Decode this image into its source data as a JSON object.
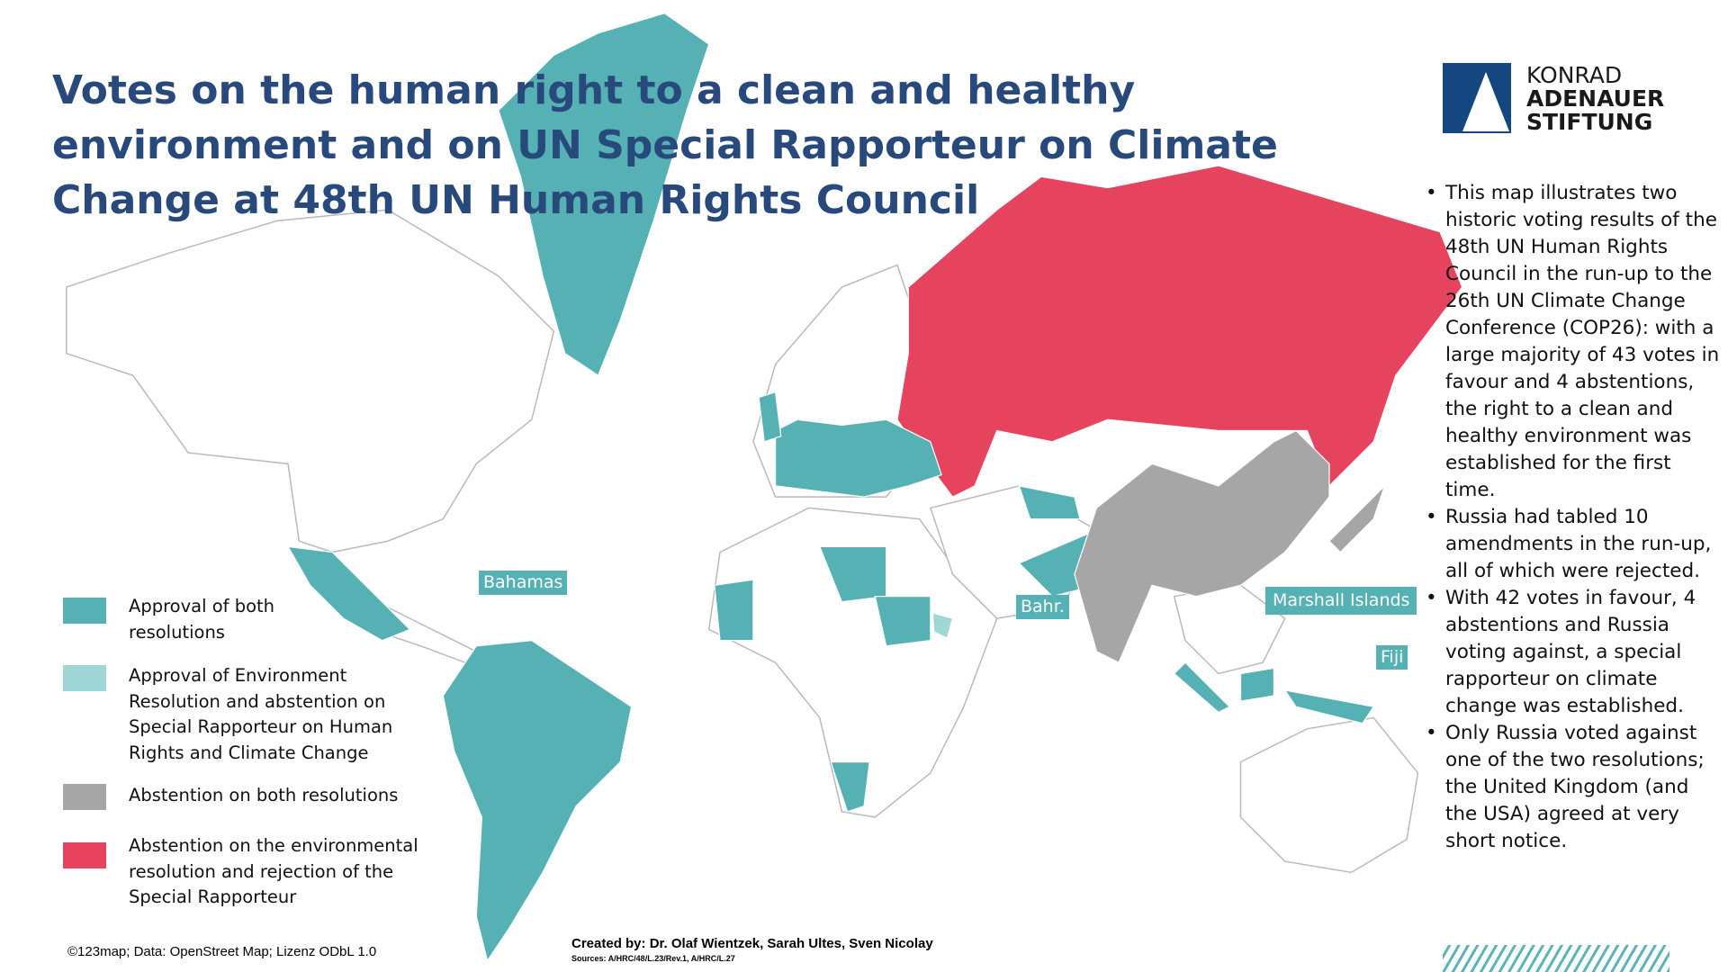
{
  "title": "Votes on the human right to a clean and healthy environment and on UN Special Rapporteur on Climate Change at 48th UN Human Rights Council",
  "logo": {
    "lines": [
      "KONRAD",
      "ADENAUER",
      "STIFTUNG"
    ]
  },
  "legend": [
    {
      "label": "Approval of both resolutions",
      "color": "#55b1b3"
    },
    {
      "label": "Approval of Environment Resolution and abstention on Special Rapporteur on Human Rights and Climate Change",
      "color": "#9fd6d6"
    },
    {
      "label": "Abstention on both resolutions",
      "color": "#a6a6a6"
    },
    {
      "label": "Abstention on the environmental resolution and rejection of the Special Rapporteur",
      "color": "#e6435f"
    }
  ],
  "map_labels": [
    "Bahamas",
    "Bahr.",
    "Marshall Islands",
    "Fiji"
  ],
  "notes": [
    "This map illustrates two historic voting results of the 48th UN Human Rights Council in the run-up to the 26th UN Climate Change Conference (COP26): with a large majority of 43 votes in favour and 4 abstentions, the right to a clean and healthy environment was established for the first time.",
    "Russia had tabled 10 amendments in the run-up, all of which were rejected.",
    "With 42 votes in favour, 4 abstentions and Russia voting against, a special rapporteur on climate change was established.",
    "Only Russia voted against one of the two resolutions; the United Kingdom (and the USA) agreed at very short notice."
  ],
  "footer": {
    "copyright": "©123map; Data: OpenStreet Map; Lizenz ODbL 1.0",
    "credits": "Created by: Dr. Olaf Wientzek, Sarah Ultes, Sven Nicolay",
    "sources": "Sources: A/HRC/48/L.23/Rev.1, A/HRC/L.27"
  }
}
